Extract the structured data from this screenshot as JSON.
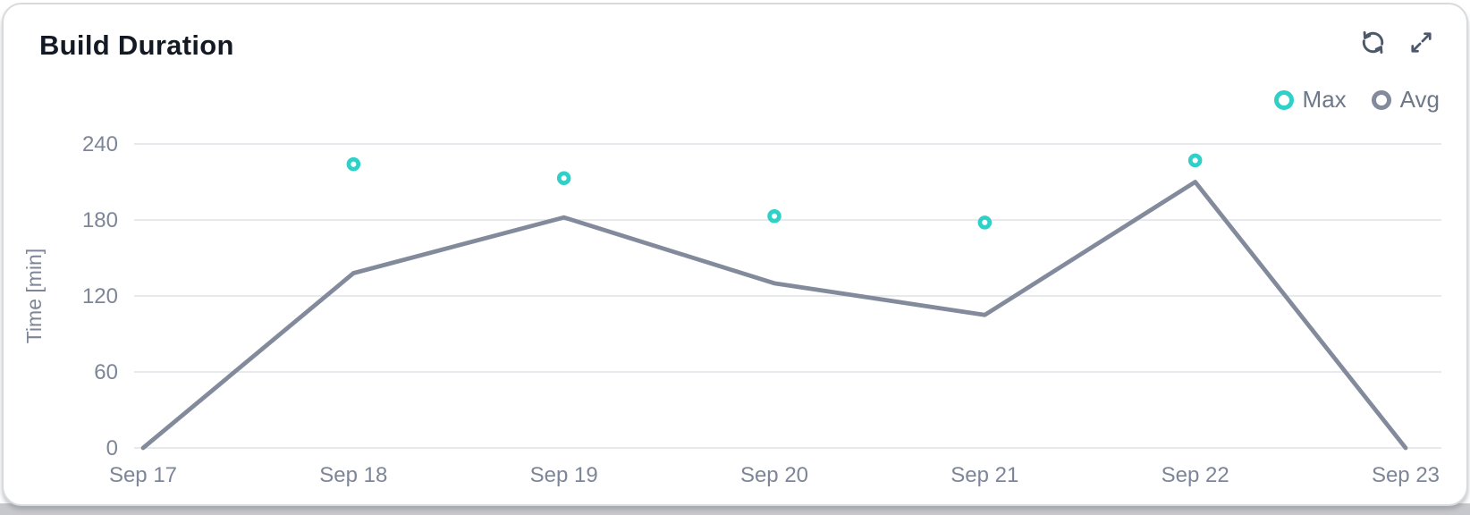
{
  "card": {
    "title": "Build Duration"
  },
  "toolbar": {
    "icons": [
      {
        "name": "refresh-icon",
        "meaning": "circular-arrows-reload"
      },
      {
        "name": "expand-icon",
        "meaning": "diagonal-arrows-fullscreen"
      }
    ]
  },
  "colors": {
    "accent_teal": "#2fd0c8",
    "line_gray": "#828a9c",
    "grid": "#e1e2e5",
    "tick_text": "#7d8698",
    "legend_text": "#6e7888",
    "title_text": "#141a24",
    "icon": "#4d586a",
    "card_border": "#d9dadd"
  },
  "chart_data": {
    "type": "line",
    "title": "Build Duration",
    "categories": [
      "Sep 17",
      "Sep 18",
      "Sep 19",
      "Sep 20",
      "Sep 21",
      "Sep 22",
      "Sep 23"
    ],
    "series": [
      {
        "name": "Max",
        "type": "scatter",
        "color": "#2fd0c8",
        "values": [
          null,
          224,
          213,
          183,
          178,
          227,
          null
        ]
      },
      {
        "name": "Avg",
        "type": "line",
        "color": "#828a9c",
        "values": [
          0,
          138,
          182,
          130,
          105,
          210,
          0
        ]
      }
    ],
    "xlabel": "",
    "ylabel": "Time [min]",
    "yticks": [
      0,
      60,
      120,
      180,
      240
    ],
    "ylim": [
      0,
      240
    ],
    "grid": true,
    "legend_position": "top-right"
  }
}
